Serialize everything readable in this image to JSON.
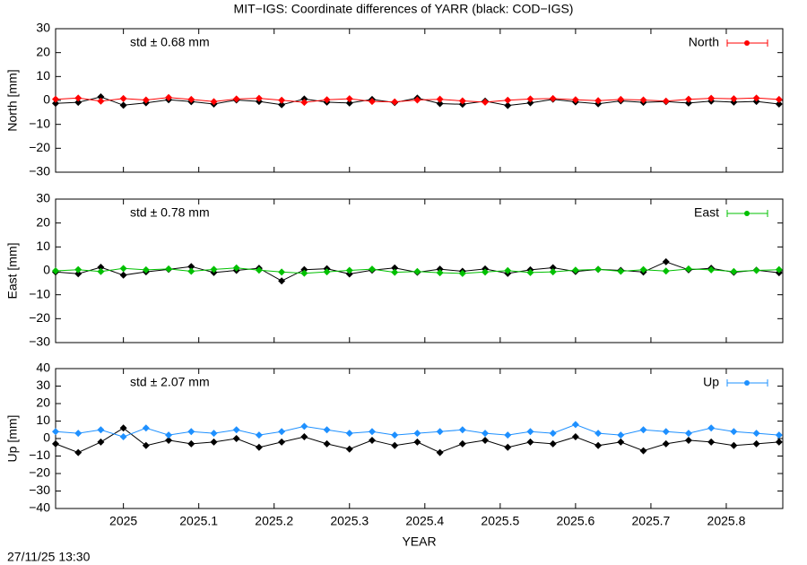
{
  "title": "MIT−IGS: Coordinate differences of YARR (black: COD−IGS)",
  "timestamp": "27/11/25 13:30",
  "chart_data": [
    {
      "type": "line",
      "ylabel": "North [mm]",
      "annotation": "std ± 0.68 mm",
      "annotation_color": "#ff0000",
      "xlim": [
        2024.91,
        2025.875
      ],
      "xticks": [
        2025,
        2025.1,
        2025.2,
        2025.3,
        2025.4,
        2025.5,
        2025.6,
        2025.7,
        2025.8
      ],
      "ylim": [
        -30,
        30
      ],
      "yticks": [
        {
          "value": -30,
          "label": "−30"
        },
        {
          "value": -20,
          "label": "−20"
        },
        {
          "value": -10,
          "label": "−10"
        },
        0,
        10,
        20,
        30
      ],
      "legend": "upper right",
      "x": [
        2024.91,
        2024.94,
        2024.97,
        2025.0,
        2025.03,
        2025.06,
        2025.09,
        2025.12,
        2025.15,
        2025.18,
        2025.21,
        2025.24,
        2025.27,
        2025.3,
        2025.33,
        2025.36,
        2025.39,
        2025.42,
        2025.45,
        2025.48,
        2025.51,
        2025.54,
        2025.57,
        2025.6,
        2025.63,
        2025.66,
        2025.69,
        2025.72,
        2025.75,
        2025.78,
        2025.81,
        2025.84,
        2025.87
      ],
      "series": [
        {
          "color": "#000000",
          "values": [
            -1.2,
            -0.8,
            1.5,
            -2,
            -1,
            0.3,
            -0.5,
            -1.5,
            0.2,
            -0.4,
            -1.8,
            0.6,
            -0.7,
            -1.1,
            0.4,
            -0.9,
            1.0,
            -1.3,
            -1.6,
            -0.3,
            -2.1,
            -1.0,
            0.5,
            -0.6,
            -1.4,
            -0.2,
            -0.8,
            -0.5,
            -1.1,
            -0.3,
            -0.7,
            -0.4,
            -1.5
          ]
        },
        {
          "name": "North",
          "color": "#ff0000",
          "values": [
            0.5,
            1,
            -0.3,
            0.8,
            0.2,
            1.2,
            0.4,
            -0.5,
            0.6,
            0.9,
            0.1,
            -0.8,
            0.3,
            0.7,
            -0.4,
            -0.6,
            0.2,
            0.5,
            -0.2,
            -0.7,
            0.1,
            0.6,
            0.8,
            0.3,
            -0.1,
            0.4,
            0.2,
            -0.3,
            0.5,
            0.9,
            0.7,
            1.0,
            0.4
          ]
        }
      ]
    },
    {
      "type": "line",
      "ylabel": "East [mm]",
      "annotation": "std ± 0.78 mm",
      "annotation_color": "#00c000",
      "xlim": [
        2024.91,
        2025.875
      ],
      "xticks": [
        2025,
        2025.1,
        2025.2,
        2025.3,
        2025.4,
        2025.5,
        2025.6,
        2025.7,
        2025.8
      ],
      "ylim": [
        -30,
        30
      ],
      "yticks": [
        {
          "value": -30,
          "label": "−30"
        },
        {
          "value": -20,
          "label": "−20"
        },
        {
          "value": -10,
          "label": "−10"
        },
        0,
        10,
        20,
        30
      ],
      "legend": "upper right",
      "x": [
        2024.91,
        2024.94,
        2024.97,
        2025.0,
        2025.03,
        2025.06,
        2025.09,
        2025.12,
        2025.15,
        2025.18,
        2025.21,
        2025.24,
        2025.27,
        2025.3,
        2025.33,
        2025.36,
        2025.39,
        2025.42,
        2025.45,
        2025.48,
        2025.51,
        2025.54,
        2025.57,
        2025.6,
        2025.63,
        2025.66,
        2025.69,
        2025.72,
        2025.75,
        2025.78,
        2025.81,
        2025.84,
        2025.87
      ],
      "series": [
        {
          "color": "#000000",
          "values": [
            -0.5,
            -1.2,
            1.5,
            -1.8,
            -0.4,
            0.6,
            1.8,
            -0.7,
            0.2,
            1.1,
            -4.2,
            0.5,
            0.9,
            -1.3,
            0.3,
            1.2,
            -0.6,
            0.7,
            -0.2,
            0.8,
            -1.1,
            0.4,
            1.3,
            -0.3,
            0.6,
            0.2,
            -0.5,
            3.8,
            0.4,
            1.1,
            -0.6,
            0.3,
            -0.8
          ]
        },
        {
          "name": "East",
          "color": "#00c000",
          "values": [
            0,
            0.5,
            -0.3,
            1,
            0.4,
            0.8,
            -0.2,
            0.6,
            1.2,
            0.3,
            -0.5,
            -1,
            -0.4,
            0.2,
            0.7,
            -0.6,
            -0.3,
            -0.8,
            -1.1,
            -0.5,
            0.1,
            -0.7,
            -0.4,
            0.3,
            0.6,
            -0.2,
            0.5,
            -0.1,
            0.8,
            0.4,
            -0.3,
            0.2,
            0.5
          ]
        }
      ]
    },
    {
      "type": "line",
      "ylabel": "Up [mm]",
      "annotation": "std ± 2.07 mm",
      "annotation_color": "#1e90ff",
      "xlabel": "YEAR",
      "xlim": [
        2024.91,
        2025.875
      ],
      "xticks": [
        2025,
        2025.1,
        2025.2,
        2025.3,
        2025.4,
        2025.5,
        2025.6,
        2025.7,
        2025.8
      ],
      "ylim": [
        -40,
        40
      ],
      "yticks": [
        {
          "value": -40,
          "label": "−40"
        },
        {
          "value": -30,
          "label": "−30"
        },
        {
          "value": -20,
          "label": "−20"
        },
        {
          "value": -10,
          "label": "−10"
        },
        0,
        10,
        20,
        30,
        40
      ],
      "legend": "upper right",
      "x": [
        2024.91,
        2024.94,
        2024.97,
        2025.0,
        2025.03,
        2025.06,
        2025.09,
        2025.12,
        2025.15,
        2025.18,
        2025.21,
        2025.24,
        2025.27,
        2025.3,
        2025.33,
        2025.36,
        2025.39,
        2025.42,
        2025.45,
        2025.48,
        2025.51,
        2025.54,
        2025.57,
        2025.6,
        2025.63,
        2025.66,
        2025.69,
        2025.72,
        2025.75,
        2025.78,
        2025.81,
        2025.84,
        2025.87
      ],
      "series": [
        {
          "color": "#000000",
          "values": [
            -3,
            -8,
            -2,
            6,
            -4,
            -1,
            -3,
            -2,
            0,
            -5,
            -2,
            1,
            -3,
            -6,
            -1,
            -4,
            -2,
            -8,
            -3,
            -1,
            -5,
            -2,
            -3,
            1,
            -4,
            -2,
            -7,
            -3,
            -1,
            -2,
            -4,
            -3,
            -2
          ]
        },
        {
          "name": "Up",
          "color": "#1e90ff",
          "values": [
            4,
            3,
            5,
            1,
            6,
            2,
            4,
            3,
            5,
            2,
            4,
            7,
            5,
            3,
            4,
            2,
            3,
            4,
            5,
            3,
            2,
            4,
            3,
            8,
            3,
            2,
            5,
            4,
            3,
            6,
            4,
            3,
            2
          ]
        }
      ]
    }
  ]
}
